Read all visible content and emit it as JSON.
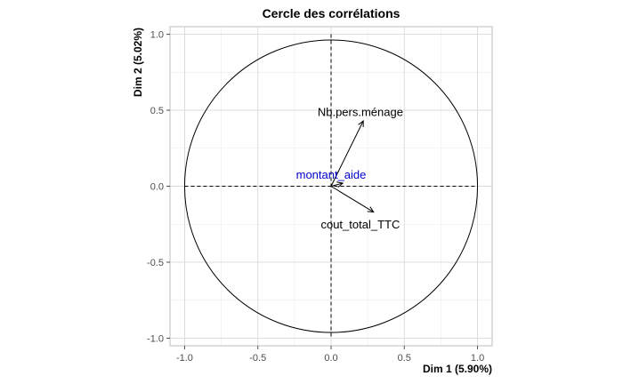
{
  "chart_data": {
    "type": "scatter",
    "title": "Cercle des corrélations",
    "xlabel": "Dim 1 (5.90%)",
    "ylabel": "Dim 2 (5.02%)",
    "xlim": [
      -1.1,
      1.1
    ],
    "ylim": [
      -1.05,
      1.05
    ],
    "xticks": [
      -1.0,
      -0.5,
      0.0,
      0.5,
      1.0
    ],
    "yticks": [
      -1.0,
      -0.5,
      0.0,
      0.5,
      1.0
    ],
    "xtick_labels": [
      "-1.0",
      "-0.5",
      "0.0",
      "0.5",
      "1.0"
    ],
    "ytick_labels": [
      "-1.0",
      "-0.5",
      "0.0",
      "0.5",
      "1.0"
    ],
    "grid": true,
    "unit_circle": true,
    "variables": [
      {
        "name": "Nb.pers.ménage",
        "x": 0.22,
        "y": 0.43,
        "color": "#000000",
        "label_x": 0.2,
        "label_y": 0.49
      },
      {
        "name": "montant_aide",
        "x": 0.08,
        "y": 0.02,
        "color": "#0000cd",
        "arrow_color": "#000000",
        "label_x": 0.0,
        "label_y": 0.08
      },
      {
        "name": "cout_total_TTC",
        "x": 0.29,
        "y": -0.17,
        "color": "#000000",
        "label_x": 0.2,
        "label_y": -0.25
      }
    ]
  }
}
